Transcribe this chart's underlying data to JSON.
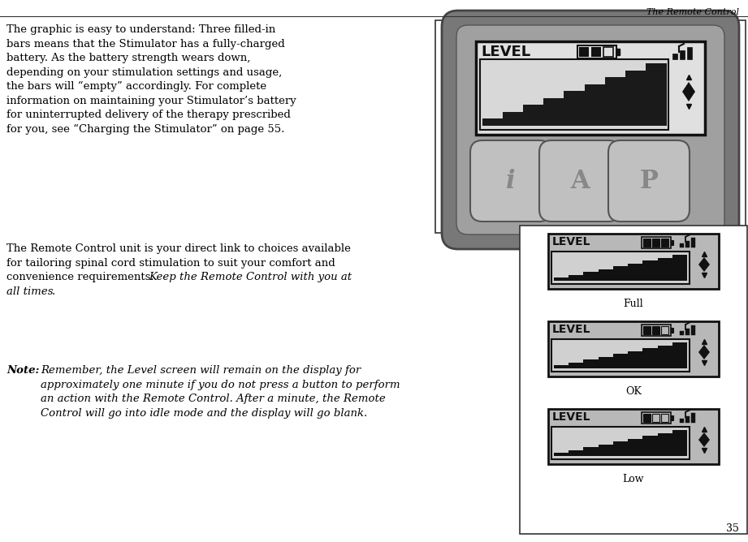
{
  "page_title": "The Remote Control",
  "page_number": "35",
  "text_block1_line1": "The graphic is easy to understand: Three filled-in",
  "text_block1_line2": "bars means that the Stimulator has a fully-charged",
  "text_block1_line3": "battery. As the battery strength wears down,",
  "text_block1_line4": "depending on your stimulation settings and usage,",
  "text_block1_line5": "the bars will “empty” accordingly. For complete",
  "text_block1_line6": "information on maintaining your Stimulator’s battery",
  "text_block1_line7": "for uninterrupted delivery of the therapy prescribed",
  "text_block1_line8": "for you, see “Charging the Stimulator” on page 55.",
  "text_block2_line1": "The Remote Control unit is your direct link to choices available",
  "text_block2_line2": "for tailoring spinal cord stimulation to suit your comfort and",
  "text_block2_line3_normal": "convenience requirements. ",
  "text_block2_line3_italic": "Keep the Remote Control with you at",
  "text_block2_line4_italic": "all times",
  "text_block2_line4_end": ".",
  "note_label": "Note:",
  "note_line1": "Remember, the Level screen will remain on the display for",
  "note_line2": "approximately one minute if you do not press a button to perform",
  "note_line3": "an action with the Remote Control. After a minute, the Remote",
  "note_line4": "Control will go into idle mode and the display will go blank.",
  "label_full": "Full",
  "label_ok": "OK",
  "label_low": "Low",
  "bg_color": "#ffffff",
  "text_color": "#000000",
  "device_outer_border": "#444444",
  "device_body_color": "#888888",
  "device_inner_color": "#aaaaaa",
  "screen_color": "#d0d0d0",
  "stair_color": "#1a1a1a",
  "panel_border": "#444444"
}
